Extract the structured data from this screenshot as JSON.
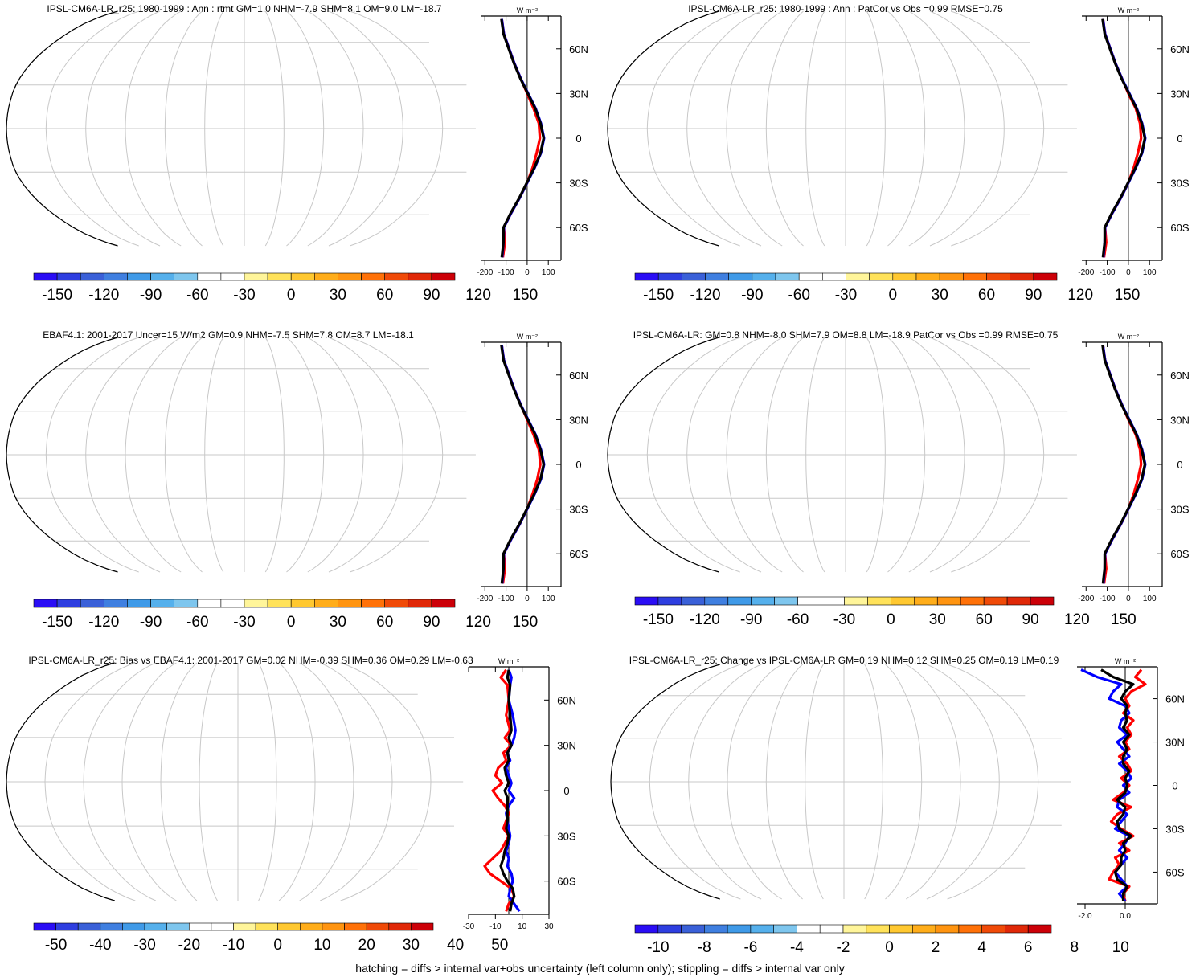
{
  "footer": "hatching = diffs > internal var+obs uncertainty (left column only); stippling = diffs > internal var only",
  "colors": {
    "land": "#ffffff",
    "coast": "#000000",
    "grid": "#c8c8c8",
    "profile_red": "#ff0000",
    "profile_blue": "#0000ff",
    "profile_black": "#000000"
  },
  "palette": [
    "#2a0df5",
    "#2e3ee0",
    "#3a60d8",
    "#3f7fe0",
    "#3f9ae8",
    "#55b0ec",
    "#7ec6ee",
    "#ffffff",
    "#ffffff",
    "#fff59a",
    "#ffe25a",
    "#ffc830",
    "#ffad1a",
    "#ff9410",
    "#ff7108",
    "#f04a08",
    "#e02808",
    "#cc0008"
  ],
  "chart_data": [
    {
      "id": "p1",
      "type": "heatmap",
      "title": "IPSL-CM6A-LR_r25: 1980-1999 : Ann : rtmt GM=1.0 NHM=-7.9 SHM=8.1 OM=9.0 LM=-18.7",
      "field": "rtmt",
      "colorbar_labels": [
        "-150",
        "-120",
        "-90",
        "-60",
        "-30",
        "0",
        "30",
        "60",
        "90",
        "120",
        "150"
      ],
      "range": [
        -150,
        150
      ],
      "profile_unit": "W m⁻²",
      "profile_xticks": [
        "-200",
        "-100",
        "0",
        "100"
      ],
      "profile_xvalues": [
        -200,
        -100,
        0,
        100
      ],
      "profile_xlim": [
        -220,
        160
      ],
      "lat_labels": [
        "60N",
        "30N",
        "0",
        "30S",
        "60S"
      ],
      "lat_values": [
        60,
        30,
        0,
        -30,
        -60
      ],
      "profile": {
        "lat": [
          80,
          70,
          60,
          50,
          40,
          30,
          20,
          10,
          0,
          -10,
          -20,
          -30,
          -40,
          -50,
          -60,
          -70,
          -80
        ],
        "series": [
          {
            "color": "red",
            "values": [
              -120,
              -110,
              -85,
              -60,
              -30,
              0,
              30,
              55,
              60,
              45,
              25,
              0,
              -35,
              -75,
              -110,
              -105,
              -115
            ]
          },
          {
            "color": "blue",
            "values": [
              -120,
              -110,
              -85,
              -60,
              -30,
              5,
              40,
              65,
              80,
              65,
              35,
              0,
              -35,
              -75,
              -110,
              -112,
              -118
            ]
          },
          {
            "color": "black",
            "values": [
              -122,
              -112,
              -87,
              -62,
              -32,
              3,
              38,
              63,
              78,
              63,
              33,
              -2,
              -37,
              -77,
              -112,
              -112,
              -120
            ]
          }
        ]
      }
    },
    {
      "id": "p2",
      "type": "heatmap",
      "title": "IPSL-CM6A-LR_r25: 1980-1999 : Ann : PatCor vs Obs =0.99 RMSE=0.75",
      "field": "rtmt",
      "colorbar_labels": [
        "-150",
        "-120",
        "-90",
        "-60",
        "-30",
        "0",
        "30",
        "60",
        "90",
        "120",
        "150"
      ],
      "range": [
        -150,
        150
      ],
      "profile_unit": "W m⁻²",
      "profile_xticks": [
        "-200",
        "-100",
        "0",
        "100"
      ],
      "profile_xvalues": [
        -200,
        -100,
        0,
        100
      ],
      "profile_xlim": [
        -220,
        160
      ],
      "lat_labels": [
        "60N",
        "30N",
        "0",
        "30S",
        "60S"
      ],
      "lat_values": [
        60,
        30,
        0,
        -30,
        -60
      ],
      "profile": {
        "lat": [
          80,
          70,
          60,
          50,
          40,
          30,
          20,
          10,
          0,
          -10,
          -20,
          -30,
          -40,
          -50,
          -60,
          -70,
          -80
        ],
        "series": [
          {
            "color": "red",
            "values": [
              -120,
              -110,
              -85,
              -60,
              -30,
              0,
              35,
              55,
              60,
              45,
              25,
              0,
              -35,
              -75,
              -110,
              -105,
              -115
            ]
          },
          {
            "color": "blue",
            "values": [
              -120,
              -110,
              -85,
              -60,
              -30,
              5,
              40,
              65,
              80,
              65,
              35,
              0,
              -35,
              -75,
              -110,
              -112,
              -118
            ]
          },
          {
            "color": "black",
            "values": [
              -122,
              -112,
              -87,
              -62,
              -32,
              3,
              38,
              63,
              78,
              63,
              33,
              -2,
              -37,
              -77,
              -112,
              -112,
              -120
            ]
          }
        ]
      }
    },
    {
      "id": "p3",
      "type": "heatmap",
      "title": "EBAF4.1: 2001-2017 Uncer=15 W/m2 GM=0.9 NHM=-7.5 SHM=7.8 OM=8.7 LM=-18.1",
      "field": "rtmt",
      "colorbar_labels": [
        "-150",
        "-120",
        "-90",
        "-60",
        "-30",
        "0",
        "30",
        "60",
        "90",
        "120",
        "150"
      ],
      "range": [
        -150,
        150
      ],
      "profile_unit": "W m⁻²",
      "profile_xticks": [
        "-200",
        "-100",
        "0",
        "100"
      ],
      "profile_xvalues": [
        -200,
        -100,
        0,
        100
      ],
      "profile_xlim": [
        -220,
        160
      ],
      "lat_labels": [
        "60N",
        "30N",
        "0",
        "30S",
        "60S"
      ],
      "lat_values": [
        60,
        30,
        0,
        -30,
        -60
      ],
      "profile": {
        "lat": [
          80,
          70,
          60,
          50,
          40,
          30,
          20,
          10,
          0,
          -10,
          -20,
          -30,
          -40,
          -50,
          -60,
          -70,
          -80
        ],
        "series": [
          {
            "color": "red",
            "values": [
              -120,
              -110,
              -85,
              -60,
              -30,
              0,
              30,
              55,
              62,
              48,
              25,
              0,
              -35,
              -75,
              -110,
              -105,
              -115
            ]
          },
          {
            "color": "blue",
            "values": [
              -120,
              -110,
              -85,
              -60,
              -30,
              5,
              40,
              65,
              80,
              65,
              35,
              0,
              -35,
              -75,
              -110,
              -112,
              -118
            ]
          },
          {
            "color": "black",
            "values": [
              -122,
              -112,
              -87,
              -62,
              -32,
              3,
              38,
              63,
              78,
              63,
              33,
              -2,
              -37,
              -77,
              -112,
              -112,
              -120
            ]
          }
        ]
      }
    },
    {
      "id": "p4",
      "type": "heatmap",
      "title": "IPSL-CM6A-LR: GM=0.8 NHM=-8.0 SHM=7.9 OM=8.8 LM=-18.9 PatCor vs Obs =0.99 RMSE=0.75",
      "field": "rtmt",
      "colorbar_labels": [
        "-150",
        "-120",
        "-90",
        "-60",
        "-30",
        "0",
        "30",
        "60",
        "90",
        "120",
        "150"
      ],
      "range": [
        -150,
        150
      ],
      "profile_unit": "W m⁻²",
      "profile_xticks": [
        "-200",
        "-100",
        "0",
        "100"
      ],
      "profile_xvalues": [
        -200,
        -100,
        0,
        100
      ],
      "profile_xlim": [
        -220,
        160
      ],
      "lat_labels": [
        "60N",
        "30N",
        "0",
        "30S",
        "60S"
      ],
      "lat_values": [
        60,
        30,
        0,
        -30,
        -60
      ],
      "profile": {
        "lat": [
          80,
          70,
          60,
          50,
          40,
          30,
          20,
          10,
          0,
          -10,
          -20,
          -30,
          -40,
          -50,
          -60,
          -70,
          -80
        ],
        "series": [
          {
            "color": "red",
            "values": [
              -120,
              -110,
              -85,
              -60,
              -30,
              0,
              35,
              55,
              60,
              45,
              25,
              0,
              -35,
              -75,
              -110,
              -105,
              -115
            ]
          },
          {
            "color": "blue",
            "values": [
              -120,
              -110,
              -85,
              -60,
              -30,
              5,
              40,
              65,
              80,
              65,
              35,
              0,
              -35,
              -75,
              -110,
              -112,
              -118
            ]
          },
          {
            "color": "black",
            "values": [
              -122,
              -112,
              -87,
              -62,
              -32,
              3,
              38,
              63,
              78,
              63,
              33,
              -2,
              -37,
              -77,
              -112,
              -112,
              -120
            ]
          }
        ]
      }
    },
    {
      "id": "p5",
      "type": "heatmap",
      "title": "IPSL-CM6A-LR_r25: Bias vs EBAF4.1: 2001-2017 GM=0.02 NHM=-0.39 SHM=0.36 OM=0.29 LM=-0.63",
      "field": "bias",
      "colorbar_labels": [
        "-50",
        "-40",
        "-30",
        "-20",
        "-10",
        "0",
        "10",
        "20",
        "30",
        "40",
        "50"
      ],
      "range": [
        -50,
        50
      ],
      "profile_unit": "W m⁻²",
      "profile_xticks": [
        "-30",
        "-10",
        "10",
        "30"
      ],
      "profile_xvalues": [
        -30,
        -10,
        10,
        30
      ],
      "profile_xlim": [
        -30,
        30
      ],
      "lat_labels": [
        "60N",
        "30N",
        "0",
        "30S",
        "60S"
      ],
      "lat_values": [
        60,
        30,
        0,
        -30,
        -60
      ],
      "profile": {
        "lat": [
          80,
          75,
          70,
          60,
          50,
          40,
          35,
          30,
          25,
          20,
          15,
          10,
          5,
          0,
          -5,
          -10,
          -15,
          -20,
          -25,
          -30,
          -35,
          -40,
          -45,
          -50,
          -55,
          -60,
          -65,
          -70,
          -75,
          -80
        ],
        "series": [
          {
            "color": "red",
            "values": [
              -2,
              -6,
              -1,
              0,
              -2,
              1,
              -3,
              2,
              -4,
              -2,
              -8,
              -10,
              -5,
              -12,
              -8,
              -3,
              0,
              -2,
              -4,
              0,
              -3,
              -6,
              -12,
              -18,
              -14,
              -6,
              2,
              4,
              0,
              -2
            ]
          },
          {
            "color": "blue",
            "values": [
              0,
              2,
              1,
              0,
              3,
              5,
              4,
              2,
              -1,
              1,
              -2,
              0,
              2,
              0,
              4,
              0,
              -2,
              -1,
              0,
              1,
              0,
              -2,
              0,
              -1,
              2,
              3,
              1,
              0,
              4,
              8
            ]
          },
          {
            "color": "black",
            "values": [
              0,
              -1,
              1,
              0,
              1,
              2,
              0,
              2,
              -1,
              0,
              -3,
              -2,
              0,
              -3,
              -1,
              -1,
              -1,
              -1,
              -2,
              0,
              -1,
              -3,
              -4,
              -6,
              -4,
              -1,
              3,
              4,
              2,
              1
            ]
          }
        ]
      }
    },
    {
      "id": "p6",
      "type": "heatmap",
      "title": "IPSL-CM6A-LR_r25: Change vs IPSL-CM6A-LR GM=0.19 NHM=0.12 SHM=0.25 OM=0.19 LM=0.19",
      "field": "change",
      "colorbar_labels": [
        "-10",
        "-8",
        "-6",
        "-4",
        "-2",
        "0",
        "2",
        "4",
        "6",
        "8",
        "10"
      ],
      "range": [
        -10,
        10
      ],
      "profile_unit": "W m⁻²",
      "profile_xticks": [
        "-2.0",
        "0.0"
      ],
      "profile_xvalues": [
        -2.0,
        0.0
      ],
      "profile_xlim": [
        -2.4,
        1.6
      ],
      "lat_labels": [
        "60N",
        "30N",
        "0",
        "30S",
        "60S"
      ],
      "lat_values": [
        60,
        30,
        0,
        -30,
        -60
      ],
      "profile": {
        "lat": [
          80,
          75,
          70,
          65,
          60,
          55,
          50,
          45,
          40,
          35,
          30,
          25,
          20,
          15,
          10,
          5,
          0,
          -5,
          -10,
          -15,
          -20,
          -25,
          -30,
          -35,
          -40,
          -45,
          -50,
          -55,
          -60,
          -65,
          -70,
          -75,
          -80
        ],
        "series": [
          {
            "color": "red",
            "values": [
              0.8,
              0.5,
              1.0,
              0.3,
              0.0,
              0.2,
              -0.1,
              0.4,
              0.1,
              0.3,
              0.0,
              0.2,
              -0.3,
              0.1,
              0.3,
              -0.2,
              0.2,
              -0.1,
              -0.6,
              0.3,
              -0.4,
              -0.7,
              -0.2,
              0.4,
              -0.3,
              0.2,
              -0.5,
              -0.3,
              -0.6,
              -0.8,
              0.2,
              -0.1,
              0.0
            ]
          },
          {
            "color": "blue",
            "values": [
              -2.2,
              -1.4,
              -0.2,
              -0.6,
              -0.8,
              0.0,
              0.2,
              -0.2,
              -0.3,
              0.1,
              -0.4,
              -0.1,
              0.2,
              -0.3,
              0.1,
              0.3,
              -0.1,
              0.2,
              -0.3,
              -0.4,
              0.1,
              -0.2,
              -0.5,
              0.2,
              0.0,
              -0.3,
              0.1,
              -0.2,
              -0.5,
              -0.2,
              0.1,
              -0.3,
              0.0
            ]
          },
          {
            "color": "black",
            "values": [
              -1.2,
              -0.6,
              0.4,
              0.0,
              -0.2,
              0.1,
              0.0,
              0.1,
              -0.1,
              0.2,
              -0.1,
              0.1,
              -0.1,
              -0.1,
              0.2,
              0.0,
              0.1,
              0.0,
              -0.4,
              0.0,
              -0.1,
              -0.4,
              -0.3,
              0.3,
              -0.1,
              0.0,
              -0.2,
              -0.2,
              -0.5,
              -0.4,
              0.1,
              -0.1,
              -0.1
            ]
          }
        ]
      }
    }
  ]
}
